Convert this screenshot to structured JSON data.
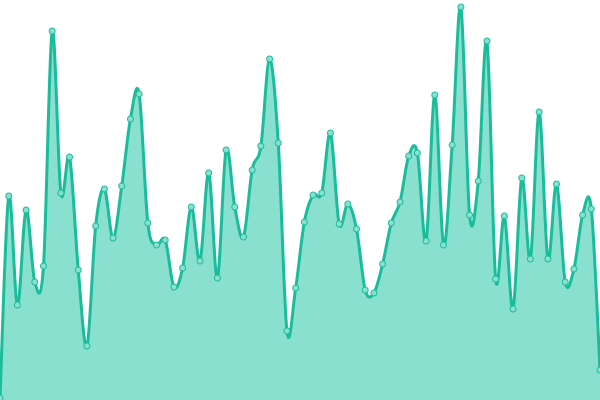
{
  "chart_data": {
    "type": "area",
    "title": "",
    "xlabel": "",
    "ylabel": "",
    "grid": false,
    "legend": "none",
    "ylim": [
      0,
      400
    ],
    "x": [
      0,
      1,
      2,
      3,
      4,
      5,
      6,
      7,
      8,
      9,
      10,
      11,
      12,
      13,
      14,
      15,
      16,
      17,
      18,
      19,
      20,
      21,
      22,
      23,
      24,
      25,
      26,
      27,
      28,
      29,
      30,
      31,
      32,
      33,
      34,
      35,
      36,
      37,
      38,
      39,
      40,
      41,
      42,
      43,
      44,
      45,
      46,
      47,
      48,
      49,
      50,
      51,
      52,
      53,
      54,
      55,
      56,
      57,
      58,
      59,
      60,
      61,
      62,
      63,
      64,
      65,
      66,
      67,
      68,
      69
    ],
    "values": [
      2,
      204,
      95,
      190,
      118,
      134,
      369,
      207,
      243,
      130,
      54,
      174,
      211,
      162,
      214,
      281,
      306,
      177,
      155,
      160,
      113,
      132,
      193,
      139,
      227,
      122,
      250,
      193,
      163,
      230,
      254,
      341,
      257,
      69,
      112,
      178,
      205,
      207,
      267,
      176,
      196,
      171,
      110,
      107,
      136,
      177,
      198,
      244,
      247,
      159,
      305,
      155,
      255,
      393,
      185,
      219,
      359,
      121,
      184,
      91,
      222,
      141,
      288,
      141,
      216,
      118,
      131,
      185,
      191,
      30
    ],
    "colors": {
      "line": "#1abc9c",
      "fill": "#8ae0cf",
      "point_fill": "#8ae0cf",
      "point_stroke": "#1abc9c"
    }
  }
}
